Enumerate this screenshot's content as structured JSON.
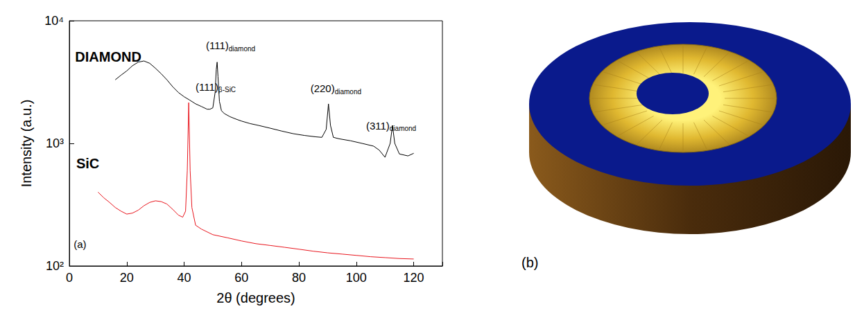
{
  "chart_data": {
    "type": "line",
    "xlabel": "2θ (degrees)",
    "ylabel": "Intensity (a.u.)",
    "log": "y",
    "xlim": [
      0,
      130
    ],
    "xticks": [
      0,
      20,
      40,
      60,
      80,
      100,
      120
    ],
    "ylim": [
      100,
      10000
    ],
    "yticks": [
      {
        "value": 100,
        "label": "10²"
      },
      {
        "value": 1000,
        "label": "10³"
      },
      {
        "value": 10000,
        "label": "10⁴"
      }
    ],
    "series": [
      {
        "color": "#000000",
        "x": [
          16,
          18,
          20,
          22,
          24,
          26,
          28,
          30,
          32,
          34,
          36,
          38,
          40,
          42,
          44,
          46,
          48,
          49,
          50,
          50.8,
          51.2,
          51.5,
          51.8,
          52.3,
          53,
          54,
          56,
          58,
          60,
          63,
          66,
          70,
          74,
          78,
          82,
          86,
          88,
          89.5,
          90.3,
          91,
          92,
          94,
          98,
          102,
          106,
          108,
          110,
          111.8,
          112.6,
          113.4,
          115,
          118,
          120
        ],
        "values": [
          3300,
          3600,
          3900,
          4300,
          4600,
          4700,
          4500,
          4100,
          3700,
          3300,
          2900,
          2600,
          2400,
          2250,
          2100,
          2000,
          1900,
          1900,
          1950,
          2600,
          4000,
          4600,
          3500,
          2200,
          1850,
          1750,
          1650,
          1580,
          1520,
          1450,
          1400,
          1330,
          1260,
          1200,
          1160,
          1130,
          1120,
          1300,
          2100,
          1400,
          1120,
          1090,
          1050,
          1000,
          950,
          880,
          770,
          1000,
          1400,
          1000,
          820,
          790,
          830
        ]
      },
      {
        "color": "#e8141c",
        "x": [
          10,
          12,
          14,
          16,
          18,
          20,
          22,
          24,
          26,
          28,
          30,
          32,
          34,
          36,
          38,
          39.5,
          40.5,
          41.1,
          41.6,
          42.1,
          42.7,
          44,
          46,
          50,
          55,
          60,
          65,
          70,
          75,
          80,
          85,
          90,
          95,
          100,
          105,
          110,
          115,
          120
        ],
        "values": [
          400,
          360,
          330,
          300,
          280,
          265,
          270,
          285,
          310,
          330,
          340,
          335,
          320,
          290,
          260,
          250,
          280,
          600,
          2150,
          600,
          300,
          215,
          200,
          180,
          170,
          160,
          152,
          147,
          142,
          137,
          132,
          128,
          125,
          122,
          119,
          117,
          115,
          114
        ]
      }
    ],
    "annotations": [
      {
        "text": "DIAMOND",
        "x": 2,
        "y": 5080
      },
      {
        "text": "SiC",
        "x": 2.4,
        "y": 690
      },
      {
        "text": "(111)",
        "subscript": "diamond",
        "x": 47.6,
        "y": 6300
      },
      {
        "text": "(220)",
        "subscript": "diamond",
        "x": 84,
        "y": 2800
      },
      {
        "text": "(311)",
        "subscript": "diamond",
        "x": 103.4,
        "y": 1400
      },
      {
        "text": "(111)",
        "subscript": "β-SiC",
        "x": 44,
        "y": 2900
      },
      {
        "text": "(a)",
        "x": 1.5,
        "y": 150
      }
    ]
  },
  "image": {
    "label": "(b)"
  }
}
